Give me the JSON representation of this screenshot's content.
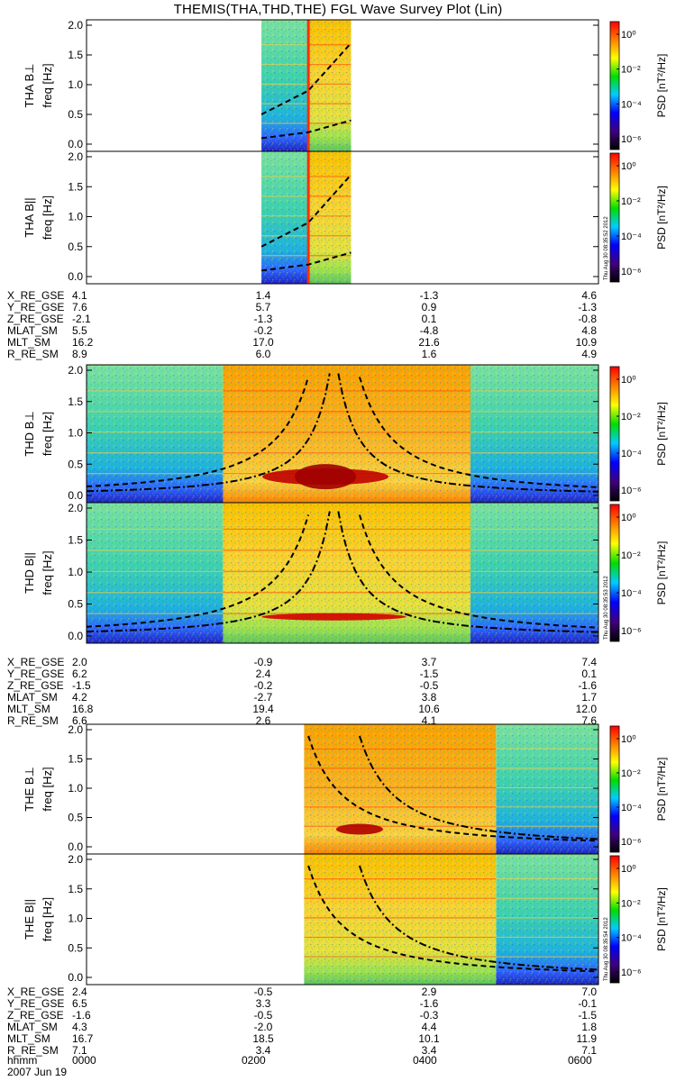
{
  "title": "THEMIS(THA,THD,THE) FGL Wave Survey Plot (Lin)",
  "colorbar": {
    "label": "PSD [nT²/Hz]",
    "ticks": [
      "10⁰",
      "10⁻²",
      "10⁻⁴",
      "10⁻⁶"
    ],
    "colors": [
      "#ff0000",
      "#ff8000",
      "#ffff00",
      "#00dd00",
      "#00ccff",
      "#0000ff",
      "#400080",
      "#000000"
    ]
  },
  "freq_axis": {
    "label": "freq [Hz]",
    "ticks": [
      "0.0",
      "0.5",
      "1.0",
      "1.5",
      "2.0"
    ],
    "range": [
      0.0,
      2.0
    ]
  },
  "time_axis": {
    "labels": [
      "0000",
      "0200",
      "0400",
      "0600"
    ],
    "range_hours": [
      0,
      6
    ]
  },
  "timestamps": [
    "Thu Aug 30 08:35:52 2012",
    "Thu Aug 30 08:35:53 2012",
    "Thu Aug 30 08:35:54 2012"
  ],
  "footer": {
    "time_label": "hhmm",
    "date": "2007 Jun 19"
  },
  "probes": [
    {
      "id": "THA",
      "panels": [
        {
          "label": "THA B⊥",
          "name": "tha-bperp"
        },
        {
          "label": "THA B||",
          "name": "tha-bpar"
        }
      ],
      "ephemeris": [
        {
          "label": "X_RE_GSE",
          "values": [
            "4.1",
            "1.4",
            "-1.3",
            "4.6"
          ]
        },
        {
          "label": "Y_RE_GSE",
          "values": [
            "7.6",
            "5.7",
            "0.9",
            "-1.3"
          ]
        },
        {
          "label": "Z_RE_GSE",
          "values": [
            "-2.1",
            "-1.3",
            "0.1",
            "-0.8"
          ]
        },
        {
          "label": "MLAT_SM",
          "values": [
            "5.5",
            "-0.2",
            "-4.8",
            "4.8"
          ]
        },
        {
          "label": "MLT_SM",
          "values": [
            "16.2",
            "17.0",
            "21.6",
            "10.9"
          ]
        },
        {
          "label": "R_RE_SM",
          "values": [
            "8.9",
            "6.0",
            "1.6",
            "4.9"
          ]
        }
      ]
    },
    {
      "id": "THD",
      "panels": [
        {
          "label": "THD B⊥",
          "name": "thd-bperp"
        },
        {
          "label": "THD B||",
          "name": "thd-bpar"
        }
      ],
      "ephemeris": [
        {
          "label": "X_RE_GSE",
          "values": [
            "2.0",
            "-0.9",
            "3.7",
            "7.4"
          ]
        },
        {
          "label": "Y_RE_GSE",
          "values": [
            "6.2",
            "2.4",
            "-1.5",
            "0.1"
          ]
        },
        {
          "label": "Z_RE_GSE",
          "values": [
            "-1.5",
            "-0.2",
            "-0.5",
            "-1.6"
          ]
        },
        {
          "label": "MLAT_SM",
          "values": [
            "4.2",
            "-2.7",
            "3.8",
            "1.7"
          ]
        },
        {
          "label": "MLT_SM",
          "values": [
            "16.8",
            "19.4",
            "10.6",
            "12.0"
          ]
        },
        {
          "label": "R_RE_SM",
          "values": [
            "6.6",
            "2.6",
            "4.1",
            "7.6"
          ]
        }
      ]
    },
    {
      "id": "THE",
      "panels": [
        {
          "label": "THE B⊥",
          "name": "the-bperp"
        },
        {
          "label": "THE B||",
          "name": "the-bpar"
        }
      ],
      "ephemeris": [
        {
          "label": "X_RE_GSE",
          "values": [
            "2.4",
            "-0.5",
            "2.9",
            "7.0"
          ]
        },
        {
          "label": "Y_RE_GSE",
          "values": [
            "6.5",
            "3.3",
            "-1.6",
            "-0.1"
          ]
        },
        {
          "label": "Z_RE_GSE",
          "values": [
            "-1.6",
            "-0.5",
            "-0.3",
            "-1.5"
          ]
        },
        {
          "label": "MLAT_SM",
          "values": [
            "4.3",
            "-2.0",
            "4.4",
            "1.8"
          ]
        },
        {
          "label": "MLT_SM",
          "values": [
            "16.7",
            "18.5",
            "10.1",
            "11.9"
          ]
        },
        {
          "label": "R_RE_SM",
          "values": [
            "7.1",
            "3.4",
            "3.4",
            "7.1"
          ]
        }
      ]
    }
  ],
  "chart_data": {
    "type": "heatmap",
    "x_range_hours": [
      0,
      6
    ],
    "y_range_hz": [
      0.0,
      2.0
    ],
    "panels": [
      {
        "name": "tha-bperp",
        "data_intervals_hours": [
          [
            2.05,
            2.6
          ],
          [
            2.6,
            3.1
          ]
        ]
      },
      {
        "name": "tha-bpar",
        "data_intervals_hours": [
          [
            2.05,
            2.6
          ],
          [
            2.6,
            3.1
          ]
        ]
      },
      {
        "name": "thd-bperp",
        "data_intervals_hours": [
          [
            0.0,
            1.6
          ],
          [
            1.6,
            4.5
          ],
          [
            4.5,
            6.0
          ]
        ]
      },
      {
        "name": "thd-bpar",
        "data_intervals_hours": [
          [
            0.0,
            1.6
          ],
          [
            1.6,
            4.5
          ],
          [
            4.5,
            6.0
          ]
        ]
      },
      {
        "name": "the-bperp",
        "data_intervals_hours": [
          [
            2.55,
            4.8
          ],
          [
            4.8,
            6.0
          ]
        ]
      },
      {
        "name": "the-bpar",
        "data_intervals_hours": [
          [
            2.55,
            4.8
          ],
          [
            4.8,
            6.0
          ]
        ]
      }
    ]
  }
}
